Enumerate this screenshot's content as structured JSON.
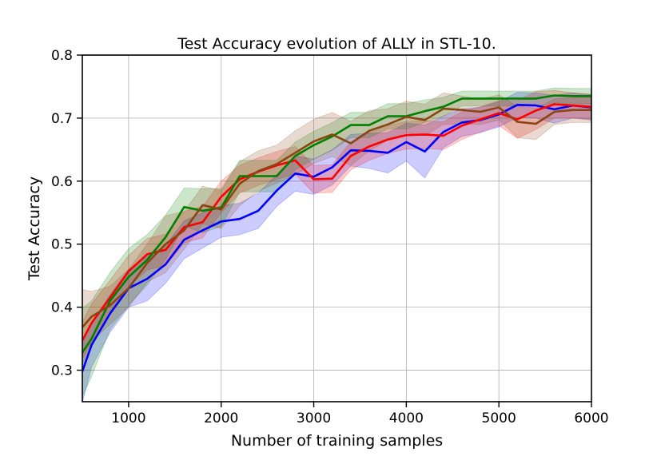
{
  "chart_data": {
    "type": "line",
    "title": "Test Accuracy evolution of ALLY in STL-10.",
    "xlabel": "Number of training samples",
    "ylabel": "Test Accuracy",
    "xlim": [
      500,
      6000
    ],
    "ylim": [
      0.25,
      0.8
    ],
    "x_ticks": [
      1000,
      2000,
      3000,
      4000,
      5000,
      6000
    ],
    "x_tick_labels": [
      "1000",
      "2000",
      "3000",
      "4000",
      "5000",
      "6000"
    ],
    "y_ticks": [
      0.3,
      0.4,
      0.5,
      0.6,
      0.7,
      0.8
    ],
    "y_tick_labels": [
      "0.3",
      "0.4",
      "0.5",
      "0.6",
      "0.7",
      "0.8"
    ],
    "grid": true,
    "legend": false,
    "x": [
      500,
      600,
      800,
      1000,
      1200,
      1400,
      1600,
      1800,
      2000,
      2200,
      2400,
      2600,
      2800,
      3000,
      3200,
      3400,
      3600,
      3800,
      4000,
      4200,
      4400,
      4600,
      4800,
      5000,
      5200,
      5400,
      5600,
      5800,
      6000
    ],
    "series": [
      {
        "color": "#0000ff",
        "values": [
          0.298,
          0.34,
          0.39,
          0.43,
          0.445,
          0.468,
          0.507,
          0.522,
          0.536,
          0.54,
          0.553,
          0.585,
          0.612,
          0.607,
          0.622,
          0.649,
          0.648,
          0.645,
          0.662,
          0.647,
          0.678,
          0.693,
          0.697,
          0.706,
          0.721,
          0.72,
          0.714,
          0.72,
          0.717
        ],
        "band": [
          0.05,
          0.035,
          0.03,
          0.03,
          0.035,
          0.03,
          0.03,
          0.028,
          0.025,
          0.025,
          0.028,
          0.025,
          0.028,
          0.028,
          0.028,
          0.025,
          0.028,
          0.032,
          0.03,
          0.042,
          0.025,
          0.022,
          0.02,
          0.02,
          0.02,
          0.02,
          0.022,
          0.02,
          0.02
        ]
      },
      {
        "color": "#ff0000",
        "values": [
          0.347,
          0.375,
          0.415,
          0.457,
          0.484,
          0.491,
          0.527,
          0.535,
          0.575,
          0.603,
          0.615,
          0.625,
          0.633,
          0.603,
          0.604,
          0.64,
          0.655,
          0.666,
          0.673,
          0.674,
          0.672,
          0.688,
          0.698,
          0.708,
          0.698,
          0.712,
          0.722,
          0.72,
          0.718
        ],
        "band": [
          0.03,
          0.03,
          0.028,
          0.025,
          0.025,
          0.025,
          0.025,
          0.025,
          0.025,
          0.022,
          0.022,
          0.022,
          0.022,
          0.022,
          0.022,
          0.022,
          0.022,
          0.022,
          0.022,
          0.022,
          0.022,
          0.022,
          0.02,
          0.02,
          0.03,
          0.03,
          0.022,
          0.02,
          0.02
        ]
      },
      {
        "color": "#008000",
        "values": [
          0.328,
          0.35,
          0.41,
          0.448,
          0.475,
          0.511,
          0.559,
          0.553,
          0.558,
          0.608,
          0.608,
          0.608,
          0.64,
          0.657,
          0.671,
          0.689,
          0.689,
          0.703,
          0.703,
          0.711,
          0.718,
          0.731,
          0.731,
          0.731,
          0.731,
          0.731,
          0.736,
          0.735,
          0.735
        ],
        "band": [
          0.07,
          0.06,
          0.045,
          0.045,
          0.04,
          0.035,
          0.03,
          0.035,
          0.03,
          0.025,
          0.025,
          0.025,
          0.022,
          0.022,
          0.022,
          0.02,
          0.02,
          0.02,
          0.02,
          0.018,
          0.015,
          0.012,
          0.012,
          0.012,
          0.012,
          0.012,
          0.012,
          0.012,
          0.012
        ]
      },
      {
        "color": "#8b4513",
        "values": [
          0.368,
          0.385,
          0.403,
          0.43,
          0.47,
          0.5,
          0.522,
          0.562,
          0.555,
          0.596,
          0.616,
          0.627,
          0.645,
          0.663,
          0.674,
          0.66,
          0.68,
          0.69,
          0.702,
          0.697,
          0.715,
          0.713,
          0.71,
          0.717,
          0.694,
          0.691,
          0.71,
          0.713,
          0.713
        ],
        "band": [
          0.06,
          0.04,
          0.03,
          0.03,
          0.03,
          0.045,
          0.03,
          0.03,
          0.03,
          0.035,
          0.032,
          0.03,
          0.035,
          0.035,
          0.035,
          0.035,
          0.032,
          0.025,
          0.025,
          0.025,
          0.025,
          0.022,
          0.02,
          0.02,
          0.025,
          0.025,
          0.02,
          0.02,
          0.02
        ]
      }
    ]
  }
}
